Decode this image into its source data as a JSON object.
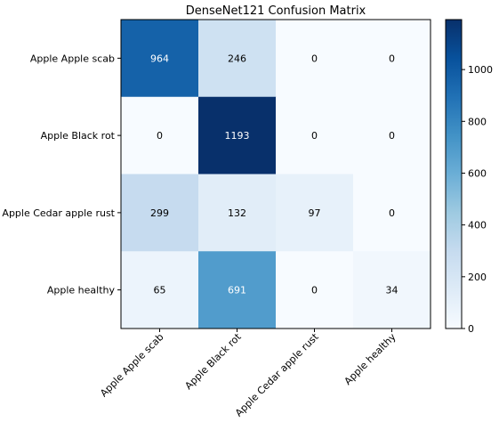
{
  "chart_data": {
    "type": "heatmap",
    "title": "DenseNet121 Confusion Matrix",
    "xlabel": "",
    "ylabel": "",
    "row_labels": [
      "Apple Apple scab",
      "Apple Black rot",
      "Apple Cedar apple rust",
      "Apple healthy"
    ],
    "col_labels": [
      "Apple Apple scab",
      "Apple Black rot",
      "Apple Cedar apple rust",
      "Apple healthy"
    ],
    "values": [
      [
        964,
        246,
        0,
        0
      ],
      [
        0,
        1193,
        0,
        0
      ],
      [
        299,
        132,
        97,
        0
      ],
      [
        65,
        691,
        0,
        34
      ]
    ],
    "colormap": "Blues",
    "colorbar": {
      "range": [
        0,
        1193
      ],
      "ticks": [
        0,
        200,
        400,
        600,
        800,
        1000
      ]
    },
    "grid": false
  }
}
